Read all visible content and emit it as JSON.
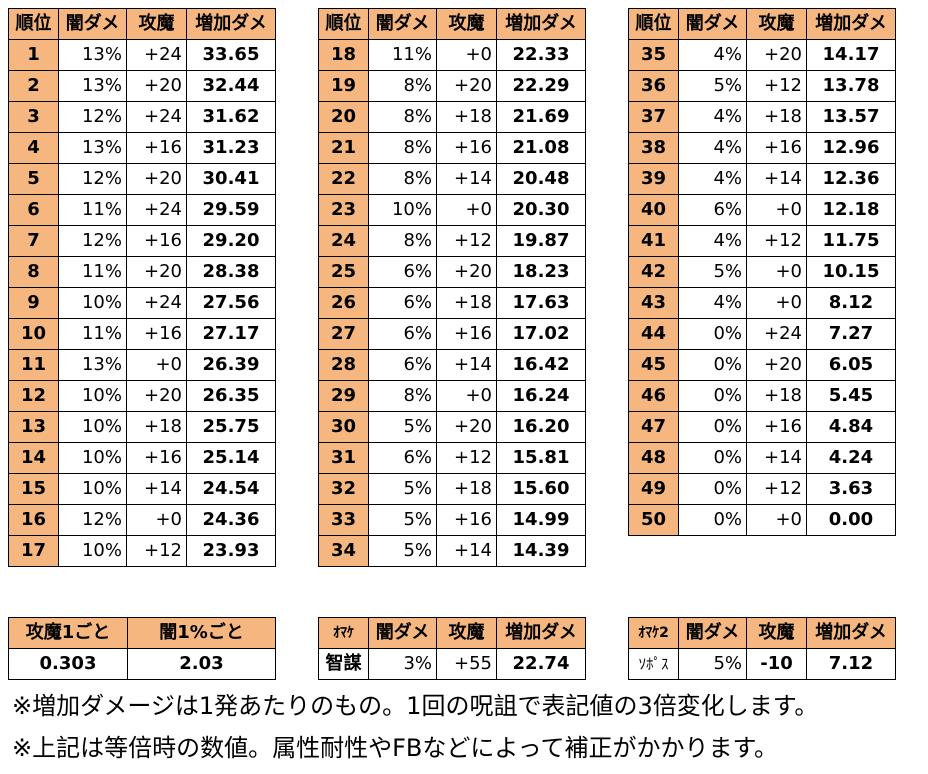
{
  "headers": [
    "順位",
    "闇ダメ",
    "攻魔",
    "増加ダメ"
  ],
  "rows": [
    [
      "1",
      "13%",
      "+24",
      "33.65"
    ],
    [
      "2",
      "13%",
      "+20",
      "32.44"
    ],
    [
      "3",
      "12%",
      "+24",
      "31.62"
    ],
    [
      "4",
      "13%",
      "+16",
      "31.23"
    ],
    [
      "5",
      "12%",
      "+20",
      "30.41"
    ],
    [
      "6",
      "11%",
      "+24",
      "29.59"
    ],
    [
      "7",
      "12%",
      "+16",
      "29.20"
    ],
    [
      "8",
      "11%",
      "+20",
      "28.38"
    ],
    [
      "9",
      "10%",
      "+24",
      "27.56"
    ],
    [
      "10",
      "11%",
      "+16",
      "27.17"
    ],
    [
      "11",
      "13%",
      "+0",
      "26.39"
    ],
    [
      "12",
      "10%",
      "+20",
      "26.35"
    ],
    [
      "13",
      "10%",
      "+18",
      "25.75"
    ],
    [
      "14",
      "10%",
      "+16",
      "25.14"
    ],
    [
      "15",
      "10%",
      "+14",
      "24.54"
    ],
    [
      "16",
      "12%",
      "+0",
      "24.36"
    ],
    [
      "17",
      "10%",
      "+12",
      "23.93"
    ],
    [
      "18",
      "11%",
      "+0",
      "22.33"
    ],
    [
      "19",
      "8%",
      "+20",
      "22.29"
    ],
    [
      "20",
      "8%",
      "+18",
      "21.69"
    ],
    [
      "21",
      "8%",
      "+16",
      "21.08"
    ],
    [
      "22",
      "8%",
      "+14",
      "20.48"
    ],
    [
      "23",
      "10%",
      "+0",
      "20.30"
    ],
    [
      "24",
      "8%",
      "+12",
      "19.87"
    ],
    [
      "25",
      "6%",
      "+20",
      "18.23"
    ],
    [
      "26",
      "6%",
      "+18",
      "17.63"
    ],
    [
      "27",
      "6%",
      "+16",
      "17.02"
    ],
    [
      "28",
      "6%",
      "+14",
      "16.42"
    ],
    [
      "29",
      "8%",
      "+0",
      "16.24"
    ],
    [
      "30",
      "5%",
      "+20",
      "16.20"
    ],
    [
      "31",
      "6%",
      "+12",
      "15.81"
    ],
    [
      "32",
      "5%",
      "+18",
      "15.60"
    ],
    [
      "33",
      "5%",
      "+16",
      "14.99"
    ],
    [
      "34",
      "5%",
      "+14",
      "14.39"
    ],
    [
      "35",
      "4%",
      "+20",
      "14.17"
    ],
    [
      "36",
      "5%",
      "+12",
      "13.78"
    ],
    [
      "37",
      "4%",
      "+18",
      "13.57"
    ],
    [
      "38",
      "4%",
      "+16",
      "12.96"
    ],
    [
      "39",
      "4%",
      "+14",
      "12.36"
    ],
    [
      "40",
      "6%",
      "+0",
      "12.18"
    ],
    [
      "41",
      "4%",
      "+12",
      "11.75"
    ],
    [
      "42",
      "5%",
      "+0",
      "10.15"
    ],
    [
      "43",
      "4%",
      "+0",
      "8.12"
    ],
    [
      "44",
      "0%",
      "+24",
      "7.27"
    ],
    [
      "45",
      "0%",
      "+20",
      "6.05"
    ],
    [
      "46",
      "0%",
      "+18",
      "5.45"
    ],
    [
      "47",
      "0%",
      "+16",
      "4.84"
    ],
    [
      "48",
      "0%",
      "+14",
      "4.24"
    ],
    [
      "49",
      "0%",
      "+12",
      "3.63"
    ],
    [
      "50",
      "0%",
      "+0",
      "0.00"
    ]
  ],
  "summary": {
    "headers": [
      "攻魔1ごと",
      "闇1%ごと"
    ],
    "values": [
      "0.303",
      "2.03"
    ]
  },
  "omake": {
    "headers": [
      "ｵﾏｹ",
      "闇ダメ",
      "攻魔",
      "増加ダメ"
    ],
    "row": [
      "智謀",
      "3%",
      "+55",
      "22.74"
    ]
  },
  "omake2": {
    "headers": [
      "ｵﾏｹ2",
      "闇ダメ",
      "攻魔",
      "増加ダメ"
    ],
    "row": [
      "ｿﾎﾟｽ",
      "5%",
      "-10",
      "7.12"
    ]
  },
  "notes": [
    "※増加ダメージは1発あたりのもの。1回の呪詛で表記値の3倍変化します。",
    "※上記は等倍時の数値。属性耐性やFBなどによって補正がかかります。"
  ],
  "colors": {
    "header_bg": "#f5b77f",
    "border": "#000000"
  }
}
